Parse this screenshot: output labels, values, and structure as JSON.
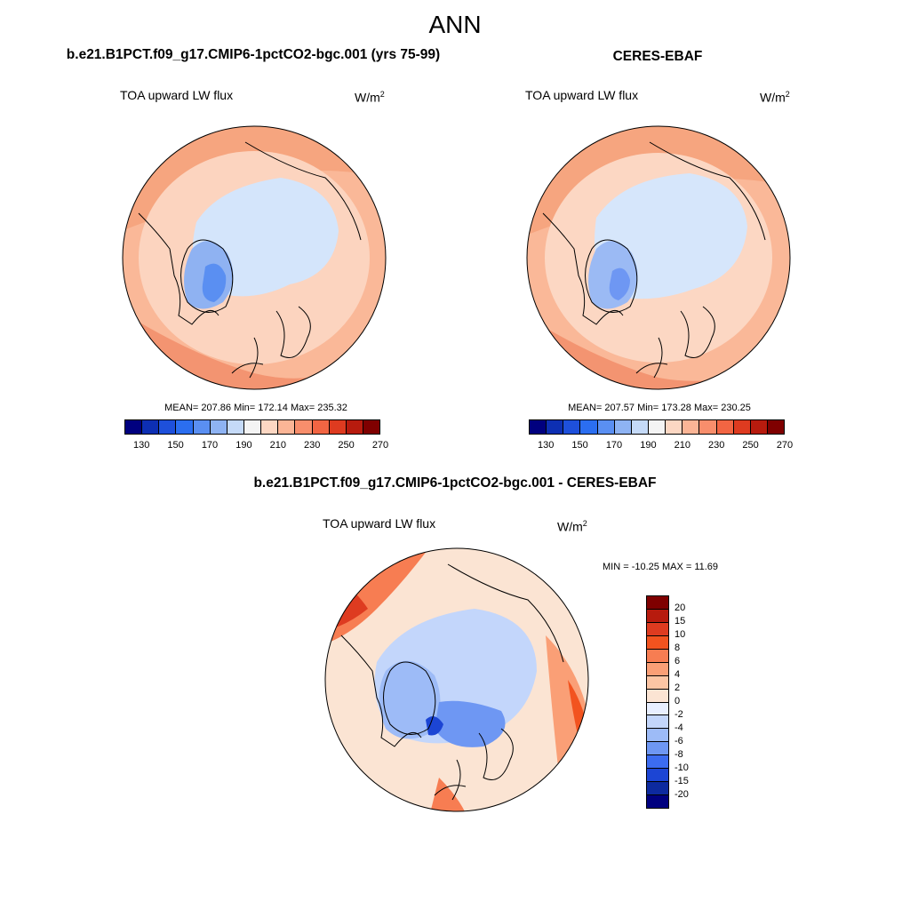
{
  "title": "ANN",
  "palette": {
    "fill_colors": [
      "#00007f",
      "#0d2fb3",
      "#1e50db",
      "#2b6ef0",
      "#5a8ff2",
      "#8eb3f3",
      "#c5daf8",
      "#f4f4f4",
      "#fcd7c3",
      "#fbb596",
      "#f88e6c",
      "#f26543",
      "#de3b20",
      "#b71b0e",
      "#7f0000"
    ],
    "land_outline": "#000000",
    "ocean_positive": "#fbd0ba",
    "ice_cap": "#d6e6fb",
    "greenland": "#6a96ee"
  },
  "panels": [
    {
      "title": "b.e21.B1PCT.f09_g17.CMIP6-1pctCO2-bgc.001 (yrs 75-99)",
      "variable": "TOA upward LW flux",
      "units": "W/m",
      "units_exp": "2",
      "stats_text": "MEAN= 207.86  Min= 172.14  Max= 235.32",
      "colorbar_ticks": [
        "130",
        "150",
        "170",
        "190",
        "210",
        "230",
        "250",
        "270"
      ]
    },
    {
      "title": "CERES-EBAF",
      "variable": "TOA upward LW flux",
      "units": "W/m",
      "units_exp": "2",
      "stats_text": "MEAN= 207.57  Min= 173.28  Max= 230.25",
      "colorbar_ticks": [
        "130",
        "150",
        "170",
        "190",
        "210",
        "230",
        "250",
        "270"
      ]
    }
  ],
  "difference": {
    "title": "b.e21.B1PCT.f09_g17.CMIP6-1pctCO2-bgc.001 - CERES-EBAF",
    "variable": "TOA upward LW flux",
    "units": "W/m",
    "units_exp": "2",
    "stats_text": "MIN = -10.25 MAX =  11.69",
    "colorbar_ticks": [
      "20",
      "15",
      "10",
      "8",
      "6",
      "4",
      "2",
      "0",
      "-2",
      "-4",
      "-6",
      "-8",
      "-10",
      "-15",
      "-20"
    ],
    "fill_colors": [
      "#7f0000",
      "#b71b0e",
      "#de3b20",
      "#f2531f",
      "#f77d52",
      "#fa9f76",
      "#fcc5a4",
      "#fbe4d3",
      "#e8efff",
      "#c3d6fb",
      "#9dbbf7",
      "#6e97f3",
      "#3c6cf0",
      "#1c45d4",
      "#0d2a9f",
      "#00007f"
    ]
  }
}
